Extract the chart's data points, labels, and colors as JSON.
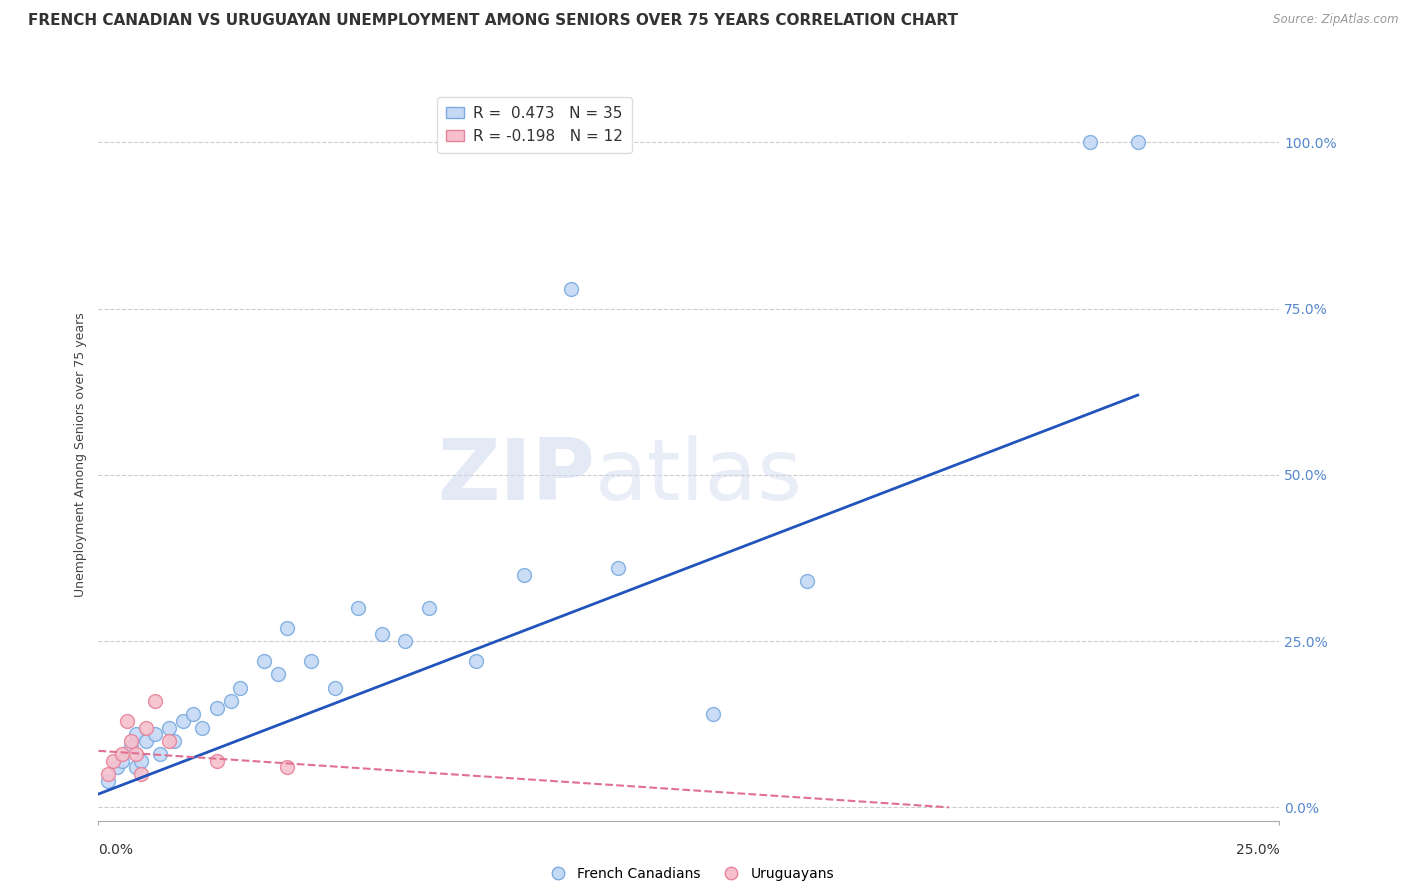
{
  "title": "FRENCH CANADIAN VS URUGUAYAN UNEMPLOYMENT AMONG SENIORS OVER 75 YEARS CORRELATION CHART",
  "source": "Source: ZipAtlas.com",
  "ylabel": "Unemployment Among Seniors over 75 years",
  "ytick_labels": [
    "0.0%",
    "25.0%",
    "50.0%",
    "75.0%",
    "100.0%"
  ],
  "ytick_values": [
    0,
    0.25,
    0.5,
    0.75,
    1.0
  ],
  "xlim": [
    0,
    0.25
  ],
  "ylim": [
    -0.02,
    1.08
  ],
  "legend_fc_label": "French Canadians",
  "legend_uy_label": "Uruguayans",
  "legend_fc_r": "R =  0.473",
  "legend_fc_n": "N = 35",
  "legend_uy_r": "R = -0.198",
  "legend_uy_n": "N = 12",
  "fc_edge_color": "#7aabe0",
  "fc_fill_color": "#c5d9f5",
  "uy_edge_color": "#e8829a",
  "uy_fill_color": "#f5c0cc",
  "fc_trend_color": "#2255bb",
  "uy_trend_color": "#e07090",
  "background_color": "#ffffff",
  "watermark_zip": "ZIP",
  "watermark_atlas": "atlas",
  "grid_color": "#cccccc",
  "title_fontsize": 11,
  "axis_label_fontsize": 9,
  "tick_fontsize": 10,
  "marker_size": 100,
  "fc_scatter_x": [
    0.002,
    0.004,
    0.005,
    0.007,
    0.008,
    0.008,
    0.009,
    0.01,
    0.012,
    0.013,
    0.015,
    0.016,
    0.018,
    0.02,
    0.022,
    0.025,
    0.028,
    0.03,
    0.035,
    0.038,
    0.04,
    0.045,
    0.05,
    0.055,
    0.06,
    0.065,
    0.07,
    0.08,
    0.09,
    0.1,
    0.11,
    0.13,
    0.15,
    0.21,
    0.22
  ],
  "fc_scatter_y": [
    0.04,
    0.06,
    0.07,
    0.09,
    0.06,
    0.11,
    0.07,
    0.1,
    0.11,
    0.08,
    0.12,
    0.1,
    0.13,
    0.14,
    0.12,
    0.15,
    0.16,
    0.18,
    0.22,
    0.2,
    0.27,
    0.22,
    0.18,
    0.3,
    0.26,
    0.25,
    0.3,
    0.22,
    0.35,
    0.78,
    0.36,
    0.14,
    0.34,
    1.0,
    1.0
  ],
  "uy_scatter_x": [
    0.002,
    0.003,
    0.005,
    0.006,
    0.007,
    0.008,
    0.009,
    0.01,
    0.012,
    0.015,
    0.025,
    0.04
  ],
  "uy_scatter_y": [
    0.05,
    0.07,
    0.08,
    0.13,
    0.1,
    0.08,
    0.05,
    0.12,
    0.16,
    0.1,
    0.07,
    0.06
  ],
  "fc_trend_x": [
    0.0,
    0.22
  ],
  "fc_trend_y": [
    0.02,
    0.62
  ],
  "uy_trend_x": [
    0.0,
    0.18
  ],
  "uy_trend_y": [
    0.085,
    0.0
  ]
}
